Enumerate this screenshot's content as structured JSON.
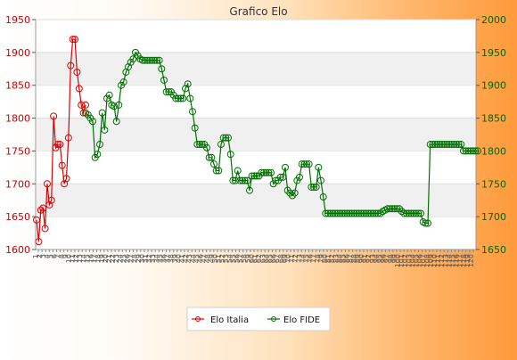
{
  "chart_data": {
    "type": "line",
    "title": "Grafico Elo",
    "left_axis": {
      "min": 1600,
      "max": 1950,
      "ticks": [
        1600,
        1650,
        1700,
        1750,
        1800,
        1850,
        1900,
        1950
      ]
    },
    "right_axis": {
      "min": 1650,
      "max": 2000,
      "ticks": [
        1650,
        1700,
        1750,
        1800,
        1850,
        1900,
        1950,
        2000
      ]
    },
    "grid": true,
    "legend_position": "bottom-center",
    "series": [
      {
        "name": "Elo Italia",
        "axis": "left",
        "color": "#e00000",
        "values": [
          1645,
          1612,
          1660,
          1663,
          1632,
          1700,
          1668,
          1675,
          1803,
          1755,
          1760,
          1760,
          1728,
          1700,
          1708,
          1770,
          1880,
          1920,
          1920,
          1870,
          1845,
          1820,
          1808,
          1820
        ]
      },
      {
        "name": "Elo FIDE",
        "axis": "right",
        "color": "#007000",
        "values": [
          1858,
          1855,
          1850,
          1845,
          1790,
          1795,
          1810,
          1858,
          1832,
          1880,
          1885,
          1870,
          1868,
          1845,
          1870,
          1900,
          1905,
          1920,
          1928,
          1935,
          1940,
          1950,
          1945,
          1940,
          1938,
          1938,
          1938,
          1938,
          1938,
          1938,
          1938,
          1938,
          1925,
          1908,
          1890,
          1890,
          1890,
          1885,
          1880,
          1880,
          1880,
          1880,
          1895,
          1902,
          1880,
          1860,
          1835,
          1810,
          1810,
          1810,
          1810,
          1805,
          1790,
          1790,
          1780,
          1770,
          1770,
          1810,
          1820,
          1820,
          1820,
          1795,
          1755,
          1755,
          1770,
          1755,
          1755,
          1755,
          1755,
          1740,
          1762,
          1762,
          1762,
          1762,
          1767,
          1767,
          1767,
          1767,
          1767,
          1750,
          1755,
          1755,
          1760,
          1760,
          1775,
          1740,
          1736,
          1732,
          1736,
          1755,
          1760,
          1780,
          1780,
          1780,
          1780,
          1745,
          1745,
          1745,
          1775,
          1755,
          1730,
          1705,
          1705,
          1705,
          1705,
          1705,
          1705,
          1705,
          1705,
          1705,
          1705,
          1705,
          1705,
          1705,
          1705,
          1705,
          1705,
          1705,
          1705,
          1705,
          1705,
          1705,
          1705,
          1705,
          1705,
          1708,
          1710,
          1712,
          1712,
          1712,
          1712,
          1712,
          1712,
          1708,
          1705,
          1705,
          1705,
          1705,
          1705,
          1705,
          1705,
          1705,
          1692,
          1690,
          1690,
          1810,
          1810,
          1810,
          1810,
          1810,
          1810,
          1810,
          1810,
          1810,
          1810,
          1810,
          1810,
          1810,
          1810,
          1800,
          1800,
          1800,
          1800,
          1800,
          1800,
          1800
        ]
      }
    ],
    "x_tick_labels": [
      "1",
      "2",
      "3",
      "4",
      "5",
      "6",
      "7",
      "8",
      "9",
      "10",
      "11",
      "12",
      "13",
      "14",
      "15",
      "16",
      "17",
      "18",
      "19",
      "20",
      "21",
      "22",
      "23",
      "24",
      "25",
      "26",
      "27",
      "28",
      "29",
      "30",
      "31",
      "32",
      "33",
      "34",
      "35",
      "36",
      "37",
      "38",
      "39",
      "40",
      "41",
      "42",
      "43",
      "44",
      "45",
      "46",
      "47",
      "48",
      "49",
      "50",
      "51",
      "52",
      "53",
      "54",
      "55",
      "56",
      "57",
      "58",
      "59",
      "60",
      "61",
      "62",
      "63",
      "64",
      "65",
      "66",
      "67",
      "68",
      "69",
      "70",
      "71",
      "72",
      "73",
      "74",
      "75",
      "76",
      "77",
      "78",
      "79",
      "80",
      "81",
      "82",
      "83",
      "84",
      "85",
      "86",
      "87",
      "88",
      "89",
      "90",
      "91",
      "92",
      "93",
      "94",
      "95",
      "96",
      "97",
      "98",
      "99",
      "100",
      "101",
      "102",
      "103",
      "104",
      "105",
      "106",
      "107",
      "108",
      "109",
      "110",
      "111",
      "112",
      "113",
      "114",
      "115",
      "116",
      "117",
      "118",
      "119",
      "120"
    ]
  }
}
